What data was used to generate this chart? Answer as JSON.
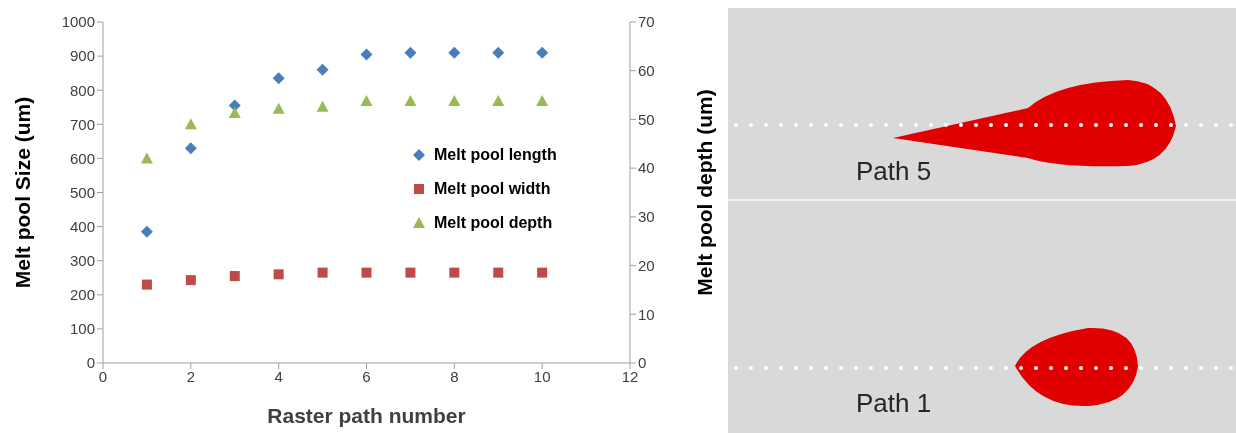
{
  "chart_data": {
    "type": "scatter",
    "xlabel": "Raster path number",
    "ylabel": "Melt pool Size (um)",
    "y2label": "Melt pool depth (um)",
    "x": [
      1,
      2,
      3,
      4,
      5,
      6,
      7,
      8,
      9,
      10
    ],
    "series": [
      {
        "name": "Melt pool length",
        "color": "#4a7ebb",
        "marker": "diamond",
        "values": [
          385,
          630,
          755,
          835,
          860,
          905,
          910,
          910,
          910,
          910
        ]
      },
      {
        "name": "Melt pool width",
        "color": "#be4b48",
        "marker": "square",
        "values": [
          230,
          243,
          255,
          260,
          265,
          265,
          265,
          265,
          265,
          265
        ]
      },
      {
        "name": "Melt pool depth",
        "color": "#98b954",
        "marker": "triangle",
        "axis": "y2",
        "values": [
          42,
          49,
          51.3,
          52.2,
          52.6,
          53.8,
          53.8,
          53.8,
          53.8,
          53.8
        ]
      }
    ],
    "xlim": [
      0,
      12
    ],
    "xticks": [
      0,
      2,
      4,
      6,
      8,
      10,
      12
    ],
    "ylim": [
      0,
      1000
    ],
    "yticks": [
      0,
      100,
      200,
      300,
      400,
      500,
      600,
      700,
      800,
      900,
      1000
    ],
    "y2lim": [
      0,
      70
    ],
    "y2ticks": [
      0,
      10,
      20,
      30,
      40,
      50,
      60,
      70
    ],
    "grid": false,
    "legend": "right",
    "annotations": [
      "Path 5",
      "Path 1"
    ]
  }
}
